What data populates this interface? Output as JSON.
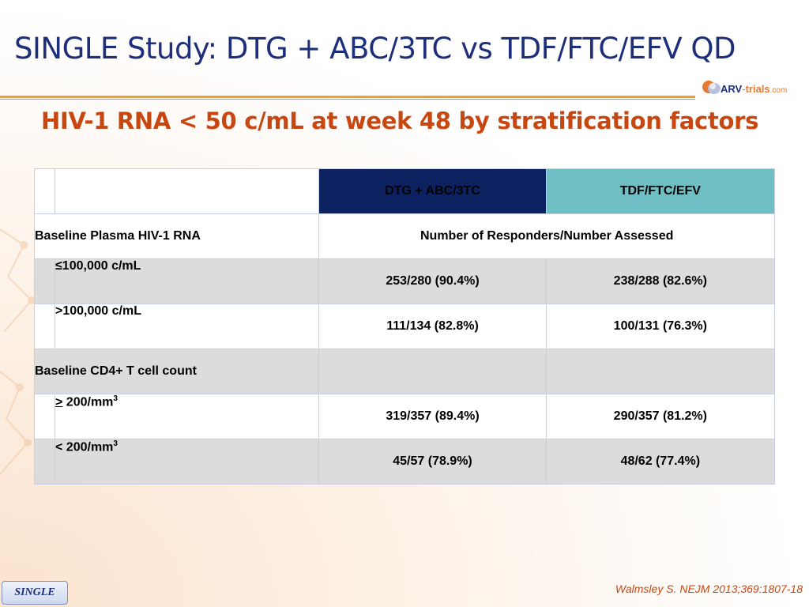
{
  "slide": {
    "title": "SINGLE Study: DTG + ABC/3TC vs TDF/FTC/EFV QD",
    "subtitle": "HIV-1 RNA < 50 c/mL at week 48 by stratification factors"
  },
  "logo": {
    "arv": "ARV",
    "dash": "-",
    "trials": "trials",
    "com": ".com"
  },
  "table": {
    "headers": {
      "dtg": "DTG + ABC/3TC",
      "tdf": "TDF/FTC/EFV"
    },
    "rna_section": {
      "label": "Baseline Plasma HIV-1 RNA",
      "span_label": "Number of Responders/Number Assessed"
    },
    "rna_rows": [
      {
        "label": "≤100,000 c/mL",
        "dtg": "253/280 (90.4%)",
        "tdf": "238/288 (82.6%)"
      },
      {
        "label": ">100,000 c/mL",
        "dtg": "111/134 (82.8%)",
        "tdf": "100/131 (76.3%)"
      }
    ],
    "cd4_section": {
      "label": "Baseline CD4+ T cell count"
    },
    "cd4_rows": [
      {
        "symbol": ">",
        "label": " 200/mm",
        "sup": "3",
        "dtg": "319/357 (89.4%)",
        "tdf": "290/357 (81.2%)"
      },
      {
        "symbol": "<",
        "label": " 200/mm",
        "sup": "3",
        "dtg": "45/57 (78.9%)",
        "tdf": "48/62 (77.4%)"
      }
    ]
  },
  "footer": {
    "badge": "SINGLE",
    "citation": "Walmsley S. NEJM 2013;369:1807-18"
  },
  "colors": {
    "title": "#1d2f7a",
    "subtitle": "#c8460f",
    "header_dtg": "#0c2260",
    "header_tdf": "#6fbfc4",
    "rule": "#f0a030",
    "row_grey": "#dcdcdc"
  }
}
